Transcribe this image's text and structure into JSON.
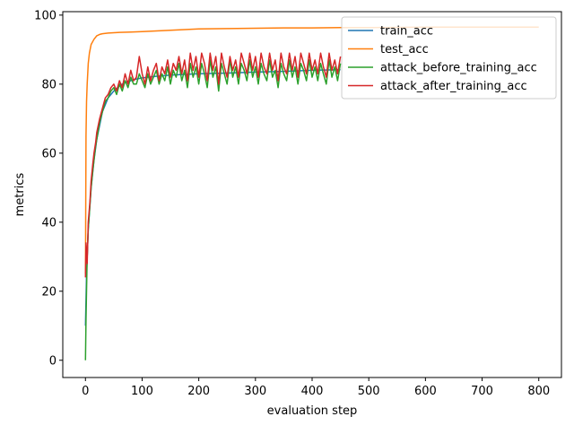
{
  "chart_data": {
    "type": "line",
    "title": "",
    "xlabel": "evaluation step",
    "ylabel": "metrics",
    "xlim": [
      -40,
      840
    ],
    "ylim": [
      -5,
      101
    ],
    "xticks": [
      0,
      100,
      200,
      300,
      400,
      500,
      600,
      700,
      800
    ],
    "yticks": [
      0,
      20,
      40,
      60,
      80,
      100
    ],
    "grid": false,
    "legend_position": "upper-right",
    "series": [
      {
        "name": "train_acc",
        "color": "#1f77b4",
        "x": [
          0,
          2,
          5,
          10,
          15,
          20,
          30,
          40,
          50,
          60,
          70,
          80,
          90,
          100,
          120,
          150,
          200,
          250,
          300,
          350,
          400,
          450
        ],
        "y": [
          10,
          25,
          38,
          50,
          58,
          64,
          72,
          76,
          78,
          79.5,
          80.5,
          81,
          81.5,
          81.8,
          82.2,
          82.6,
          83,
          83.2,
          83.5,
          83.7,
          84,
          84.2
        ]
      },
      {
        "name": "test_acc",
        "color": "#ff7f0e",
        "x": [
          0,
          1,
          2,
          3,
          5,
          7,
          10,
          15,
          20,
          25,
          30,
          40,
          50,
          60,
          80,
          100,
          150,
          200,
          250,
          300,
          350,
          400,
          450,
          500,
          600,
          700,
          800
        ],
        "y": [
          25,
          65,
          75,
          80,
          86,
          89,
          91.5,
          93,
          94,
          94.4,
          94.6,
          94.8,
          94.9,
          95,
          95.1,
          95.2,
          95.6,
          96,
          96.1,
          96.2,
          96.3,
          96.3,
          96.4,
          96.4,
          96.5,
          96.5,
          96.5
        ]
      },
      {
        "name": "attack_before_training_acc",
        "color": "#2ca02c",
        "x": [
          0,
          1,
          3,
          5,
          8,
          10,
          13,
          15,
          18,
          20,
          25,
          30,
          35,
          40,
          45,
          50,
          55,
          60,
          65,
          70,
          75,
          80,
          85,
          90,
          95,
          100,
          105,
          110,
          115,
          120,
          125,
          130,
          135,
          140,
          145,
          150,
          155,
          160,
          165,
          170,
          175,
          180,
          185,
          190,
          195,
          200,
          205,
          210,
          215,
          220,
          225,
          230,
          235,
          240,
          245,
          250,
          255,
          260,
          265,
          270,
          275,
          280,
          285,
          290,
          295,
          300,
          305,
          310,
          315,
          320,
          325,
          330,
          335,
          340,
          345,
          350,
          355,
          360,
          365,
          370,
          375,
          380,
          385,
          390,
          395,
          400,
          405,
          410,
          415,
          420,
          425,
          430,
          435,
          440,
          445,
          450
        ],
        "y": [
          0,
          12,
          30,
          38,
          45,
          50,
          55,
          58,
          62,
          64,
          69,
          72,
          75,
          76,
          78,
          79,
          77,
          80,
          78,
          81,
          79,
          82,
          80,
          80,
          83,
          81,
          79,
          83,
          80,
          82,
          84,
          80,
          83,
          81,
          85,
          80,
          84,
          82,
          86,
          81,
          84,
          79,
          86,
          82,
          85,
          80,
          86,
          83,
          79,
          87,
          82,
          85,
          78,
          86,
          83,
          80,
          87,
          82,
          85,
          80,
          86,
          84,
          81,
          87,
          82,
          85,
          80,
          86,
          83,
          81,
          87,
          82,
          84,
          79,
          86,
          83,
          81,
          87,
          82,
          85,
          80,
          86,
          84,
          81,
          87,
          82,
          85,
          81,
          86,
          83,
          80,
          87,
          82,
          85,
          81,
          86
        ]
      },
      {
        "name": "attack_after_training_acc",
        "color": "#d62728",
        "x": [
          0,
          1,
          3,
          5,
          8,
          10,
          13,
          15,
          18,
          20,
          25,
          30,
          35,
          40,
          45,
          50,
          55,
          60,
          65,
          70,
          75,
          80,
          85,
          90,
          95,
          100,
          105,
          110,
          115,
          120,
          125,
          130,
          135,
          140,
          145,
          150,
          155,
          160,
          165,
          170,
          175,
          180,
          185,
          190,
          195,
          200,
          205,
          210,
          215,
          220,
          225,
          230,
          235,
          240,
          245,
          250,
          255,
          260,
          265,
          270,
          275,
          280,
          285,
          290,
          295,
          300,
          305,
          310,
          315,
          320,
          325,
          330,
          335,
          340,
          345,
          350,
          355,
          360,
          365,
          370,
          375,
          380,
          385,
          390,
          395,
          400,
          405,
          410,
          415,
          420,
          425,
          430,
          435,
          440,
          445,
          450
        ],
        "y": [
          24,
          34,
          28,
          40,
          46,
          52,
          57,
          60,
          63,
          66,
          70,
          73,
          76,
          77,
          79,
          80,
          78,
          81,
          79,
          83,
          80,
          84,
          81,
          82,
          88,
          83,
          80,
          85,
          81,
          84,
          86,
          81,
          85,
          83,
          87,
          82,
          86,
          84,
          88,
          83,
          87,
          81,
          89,
          84,
          88,
          82,
          89,
          86,
          81,
          89,
          84,
          88,
          80,
          89,
          85,
          82,
          88,
          84,
          87,
          82,
          89,
          86,
          83,
          89,
          84,
          88,
          82,
          89,
          85,
          83,
          89,
          84,
          87,
          81,
          89,
          85,
          83,
          89,
          84,
          88,
          82,
          89,
          86,
          83,
          89,
          84,
          87,
          83,
          89,
          85,
          82,
          89,
          84,
          87,
          83,
          88
        ]
      }
    ]
  }
}
